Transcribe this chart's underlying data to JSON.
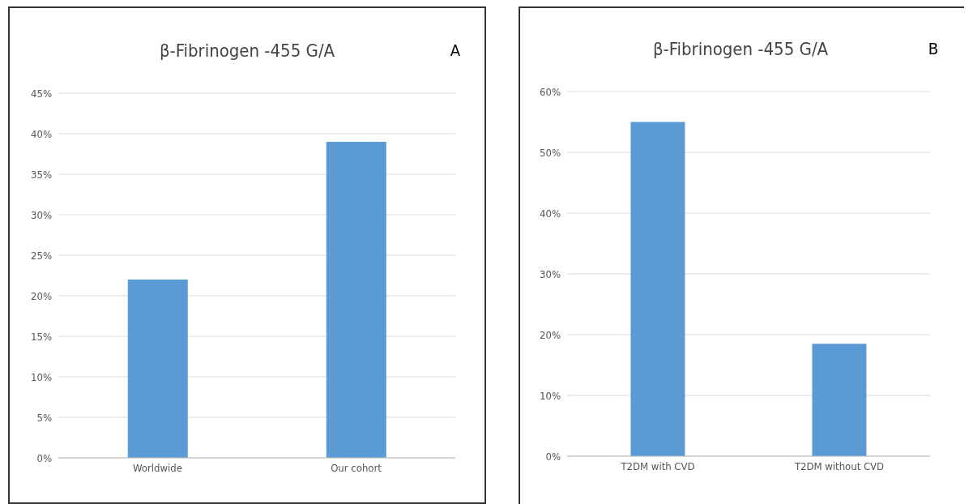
{
  "chart_data": [
    {
      "type": "bar",
      "title": "β-Fibrinogen -455 G/A",
      "annotations": [
        "A"
      ],
      "categories": [
        "Worldwide",
        "Our cohort"
      ],
      "values": [
        22,
        39
      ],
      "color": "#5b9bd5",
      "ylim": [
        0,
        45
      ],
      "yticks": [
        {
          "value": 0,
          "label": "0%"
        },
        {
          "value": 5,
          "label": "5%"
        },
        {
          "value": 10,
          "label": "10%"
        },
        {
          "value": 15,
          "label": "15%"
        },
        {
          "value": 20,
          "label": "20%"
        },
        {
          "value": 25,
          "label": "25%"
        },
        {
          "value": 30,
          "label": "30%"
        },
        {
          "value": 35,
          "label": "35%"
        },
        {
          "value": 40,
          "label": "40%"
        },
        {
          "value": 45,
          "label": "45%"
        }
      ],
      "grid": "y"
    },
    {
      "type": "bar",
      "title": "β-Fibrinogen -455 G/A",
      "annotations": [
        "B"
      ],
      "categories": [
        "T2DM with CVD",
        "T2DM without CVD"
      ],
      "values": [
        55,
        18.5
      ],
      "color": "#5b9bd5",
      "ylim": [
        0,
        60
      ],
      "yticks": [
        {
          "value": 0,
          "label": "0%"
        },
        {
          "value": 10,
          "label": "10%"
        },
        {
          "value": 20,
          "label": "20%"
        },
        {
          "value": 30,
          "label": "30%"
        },
        {
          "value": 40,
          "label": "40%"
        },
        {
          "value": 50,
          "label": "50%"
        },
        {
          "value": 60,
          "label": "60%"
        }
      ],
      "grid": "y"
    }
  ]
}
